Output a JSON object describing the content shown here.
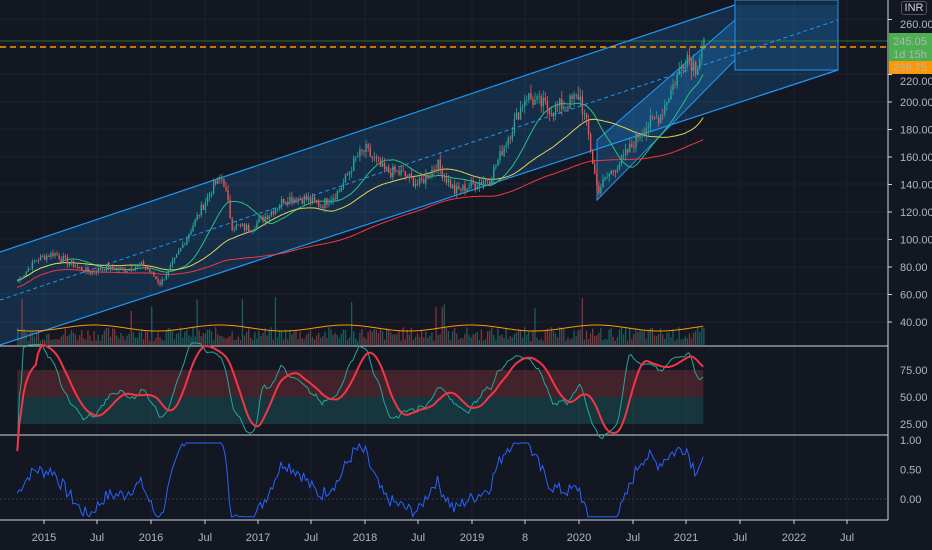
{
  "currency": "INR",
  "price_labels": {
    "last": "245.05",
    "countdown": "1d 15h",
    "alert": "239.75"
  },
  "colors": {
    "up": "#26a69a",
    "down": "#ef5350",
    "channel": "#2196f3",
    "alert_line": "#ff9800",
    "last_price": "#4caf50",
    "ma_fast": "#26c281",
    "ma_mid": "#e0d35a",
    "ma_slow": "#f23645",
    "volume_ma": "#ff9800",
    "rsi": "#26a69a",
    "rsi_ma": "#f23645",
    "lower_line": "#2962ff"
  },
  "chart_data": [
    {
      "type": "candlestick",
      "x": [
        "2014-10",
        "2014-12",
        "2015-02",
        "2015-04",
        "2015-06",
        "2015-08",
        "2015-10",
        "2015-12",
        "2016-02",
        "2016-04",
        "2016-06",
        "2016-08",
        "2016-09",
        "2016-10",
        "2016-12",
        "2017-02",
        "2017-04",
        "2017-06",
        "2017-08",
        "2017-10",
        "2017-12",
        "2018-01",
        "2018-03",
        "2018-05",
        "2018-07",
        "2018-09",
        "2018-11",
        "2019-01",
        "2019-03",
        "2019-05",
        "2019-07",
        "2019-08",
        "2019-10",
        "2019-12",
        "2020-01",
        "2020-02",
        "2020-03",
        "2020-04",
        "2020-06",
        "2020-08",
        "2020-10",
        "2020-12",
        "2021-01",
        "2021-02",
        "2021-03"
      ],
      "close": [
        70,
        85,
        90,
        82,
        76,
        80,
        78,
        82,
        68,
        90,
        115,
        140,
        145,
        110,
        108,
        118,
        130,
        130,
        125,
        135,
        160,
        165,
        150,
        148,
        140,
        155,
        135,
        140,
        145,
        175,
        205,
        200,
        195,
        200,
        205,
        175,
        135,
        145,
        160,
        180,
        190,
        220,
        235,
        225,
        245
      ],
      "y_ticks": [
        "40.00",
        "60.00",
        "80.00",
        "100.00",
        "120.00",
        "140.00",
        "160.00",
        "180.00",
        "200.00",
        "220.00",
        "260.00"
      ],
      "x_ticks": [
        "2015",
        "Jul",
        "2016",
        "Jul",
        "2017",
        "Jul",
        "2018",
        "Jul",
        "2019",
        "8",
        "2020",
        "Jul",
        "2021",
        "Jul",
        "2022",
        "Jul"
      ],
      "ylim": [
        20,
        265
      ]
    },
    {
      "type": "line",
      "y_ticks": [
        "25.00",
        "50.00",
        "75.00"
      ],
      "ylim": [
        15,
        90
      ]
    },
    {
      "type": "line",
      "y_ticks": [
        "0.00",
        "0.50",
        "1.00"
      ],
      "ylim": [
        -0.35,
        1.05
      ]
    }
  ]
}
